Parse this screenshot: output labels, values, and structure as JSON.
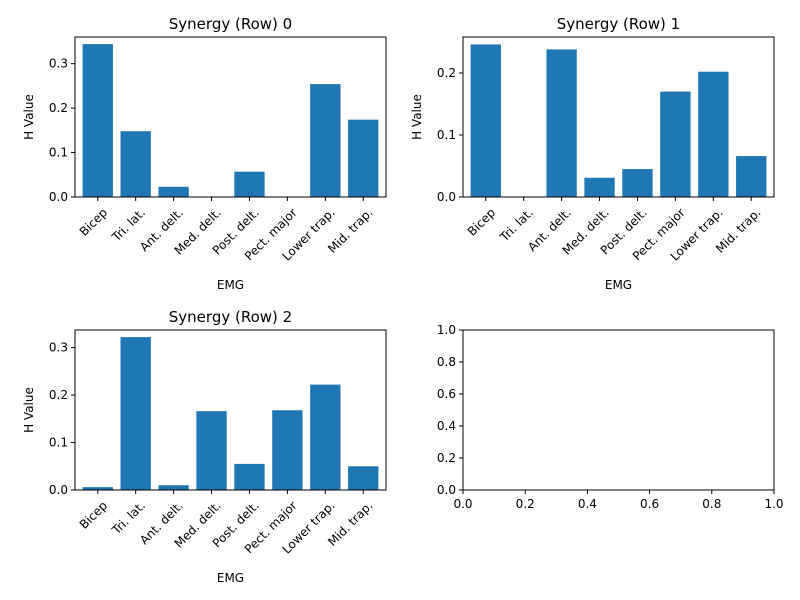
{
  "chart_data": [
    {
      "type": "bar",
      "title": "Synergy (Row) 0",
      "xlabel": "EMG",
      "ylabel": "H Value",
      "categories": [
        "Bicep",
        "Tri. lat.",
        "Ant. delt.",
        "Med. delt.",
        "Post. delt.",
        "Pect. major",
        "Lower trap.",
        "Mid. trap."
      ],
      "values": [
        0.344,
        0.148,
        0.023,
        0.0,
        0.057,
        0.0,
        0.254,
        0.174
      ],
      "ylim": [
        0,
        0.36
      ],
      "yticks": [
        0.0,
        0.1,
        0.2,
        0.3
      ],
      "ytick_labels": [
        "0.0",
        "0.1",
        "0.2",
        "0.3"
      ],
      "color": "#1f77b4",
      "grid": false
    },
    {
      "type": "bar",
      "title": "Synergy (Row) 1",
      "xlabel": "EMG",
      "ylabel": "H Value",
      "categories": [
        "Bicep",
        "Tri. lat.",
        "Ant. delt.",
        "Med. delt.",
        "Post. delt.",
        "Pect. major",
        "Lower trap.",
        "Mid. trap."
      ],
      "values": [
        0.246,
        0.0,
        0.238,
        0.031,
        0.045,
        0.17,
        0.202,
        0.066
      ],
      "ylim": [
        0,
        0.258
      ],
      "yticks": [
        0.0,
        0.1,
        0.2
      ],
      "ytick_labels": [
        "0.0",
        "0.1",
        "0.2"
      ],
      "color": "#1f77b4",
      "grid": false
    },
    {
      "type": "bar",
      "title": "Synergy (Row) 2",
      "xlabel": "EMG",
      "ylabel": "H Value",
      "categories": [
        "Bicep",
        "Tri. lat.",
        "Ant. delt.",
        "Med. delt.",
        "Post. delt.",
        "Pect. major",
        "Lower trap.",
        "Mid. trap."
      ],
      "values": [
        0.006,
        0.322,
        0.01,
        0.166,
        0.055,
        0.168,
        0.222,
        0.05
      ],
      "ylim": [
        0,
        0.337
      ],
      "yticks": [
        0.0,
        0.1,
        0.2,
        0.3
      ],
      "ytick_labels": [
        "0.0",
        "0.1",
        "0.2",
        "0.3"
      ],
      "color": "#1f77b4",
      "grid": false
    },
    {
      "type": "empty",
      "xlim": [
        0,
        1
      ],
      "ylim": [
        0,
        1
      ],
      "xticks": [
        0.0,
        0.2,
        0.4,
        0.6,
        0.8,
        1.0
      ],
      "xtick_labels": [
        "0.0",
        "0.2",
        "0.4",
        "0.6",
        "0.8",
        "1.0"
      ],
      "yticks": [
        0.0,
        0.2,
        0.4,
        0.6,
        0.8,
        1.0
      ],
      "ytick_labels": [
        "0.0",
        "0.2",
        "0.4",
        "0.6",
        "0.8",
        "1.0"
      ],
      "grid": false
    }
  ]
}
